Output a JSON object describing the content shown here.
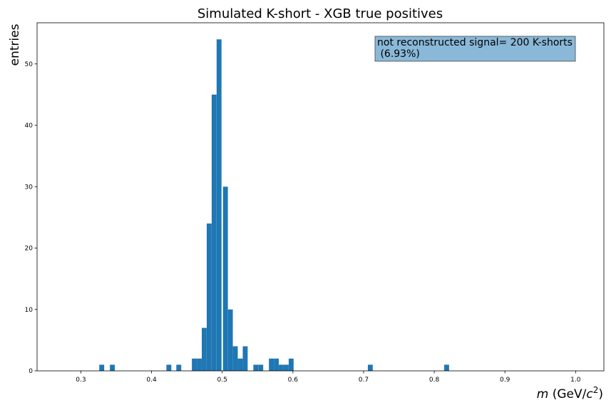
{
  "chart_data": {
    "type": "bar",
    "title": "Simulated K-short - XGB true positives",
    "ylabel": "entries",
    "xlabel_var": "m",
    "xlabel_unit_open": " (GeV/",
    "xlabel_unit_base": "c",
    "xlabel_unit_sup": "2",
    "xlabel_unit_close": ")",
    "xlim": [
      0.238,
      1.04
    ],
    "ylim": [
      0,
      56.7
    ],
    "bin_width": 0.00693,
    "xticks": [
      0.3,
      0.4,
      0.5,
      0.6,
      0.7,
      0.8,
      0.9,
      1.0
    ],
    "xtick_labels": [
      "0.3",
      "0.4",
      "0.5",
      "0.6",
      "0.7",
      "0.8",
      "0.9",
      "1.0"
    ],
    "yticks": [
      0,
      10,
      20,
      30,
      40,
      50
    ],
    "ytick_labels": [
      "0",
      "10",
      "20",
      "30",
      "40",
      "50"
    ],
    "grid": false,
    "bar_color": "#1f77b4",
    "annotation": {
      "line1": "not reconstructed signal= 200 K-shorts",
      "line2": " (6.93%)",
      "background": "#8ab8d8",
      "border": "#444444",
      "placement": "top-right"
    },
    "bins": [
      {
        "x": 0.3295,
        "count": 1
      },
      {
        "x": 0.3445,
        "count": 1
      },
      {
        "x": 0.4245,
        "count": 1
      },
      {
        "x": 0.4385,
        "count": 1
      },
      {
        "x": 0.4605,
        "count": 2
      },
      {
        "x": 0.4675,
        "count": 2
      },
      {
        "x": 0.4745,
        "count": 7
      },
      {
        "x": 0.4815,
        "count": 24
      },
      {
        "x": 0.4885,
        "count": 45
      },
      {
        "x": 0.4955,
        "count": 54
      },
      {
        "x": 0.5045,
        "count": 30
      },
      {
        "x": 0.5115,
        "count": 10
      },
      {
        "x": 0.5185,
        "count": 4
      },
      {
        "x": 0.5255,
        "count": 2
      },
      {
        "x": 0.5325,
        "count": 4
      },
      {
        "x": 0.5475,
        "count": 1
      },
      {
        "x": 0.5545,
        "count": 1
      },
      {
        "x": 0.5695,
        "count": 2
      },
      {
        "x": 0.5765,
        "count": 2
      },
      {
        "x": 0.5835,
        "count": 1
      },
      {
        "x": 0.5905,
        "count": 1
      },
      {
        "x": 0.5975,
        "count": 2
      },
      {
        "x": 0.7095,
        "count": 1
      },
      {
        "x": 0.8175,
        "count": 1
      }
    ]
  }
}
